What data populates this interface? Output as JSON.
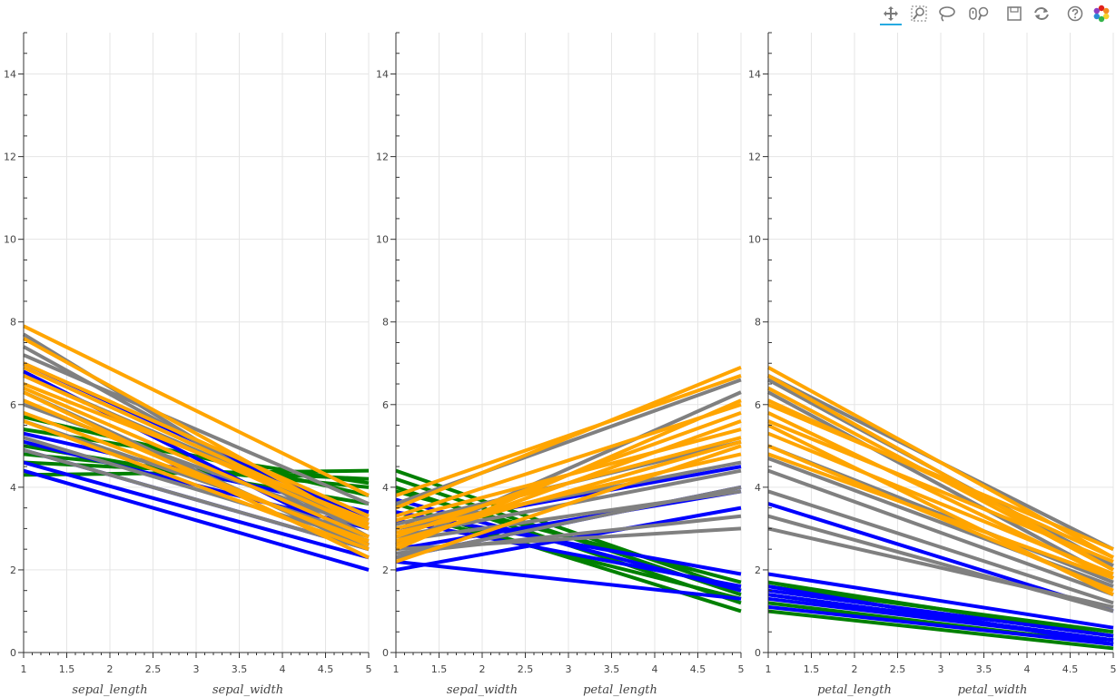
{
  "toolbar": {
    "tools": [
      {
        "name": "pan-tool",
        "icon": "pan-icon",
        "active": true
      },
      {
        "name": "box-zoom-tool",
        "icon": "box-zoom-icon",
        "active": false
      },
      {
        "name": "lasso-select-tool",
        "icon": "lasso-icon",
        "active": false
      },
      {
        "name": "wheel-zoom-tool",
        "icon": "wheel-zoom-icon",
        "active": false
      },
      {
        "name": "save-tool",
        "icon": "save-icon",
        "active": false
      },
      {
        "name": "reset-tool",
        "icon": "reset-icon",
        "active": false
      },
      {
        "name": "help-tool",
        "icon": "help-icon",
        "active": false
      },
      {
        "name": "bokeh-logo",
        "icon": "bokeh-logo-icon",
        "active": false
      }
    ]
  },
  "chart_data": [
    {
      "type": "line",
      "xlim": [
        1,
        5
      ],
      "ylim": [
        0,
        15
      ],
      "x_ticks": [
        "1",
        "1.5",
        "2",
        "2.5",
        "3",
        "3.5",
        "4",
        "4.5",
        "5"
      ],
      "y_ticks": [
        "0",
        "2",
        "4",
        "6",
        "8",
        "10",
        "12",
        "14"
      ],
      "x_category_labels": [
        "sepal_length",
        "sepal_width"
      ],
      "grid": true,
      "series": [
        {
          "color": "#008000",
          "values": [
            [
              1,
              4.3,
              4.4
            ],
            [
              1,
              4.6,
              4.2
            ],
            [
              1,
              4.8,
              4.0
            ],
            [
              1,
              5.0,
              3.6
            ],
            [
              1,
              5.4,
              4.1
            ],
            [
              1,
              5.7,
              3.8
            ]
          ]
        },
        {
          "color": "#0000ff",
          "values": [
            [
              1,
              4.4,
              2.0
            ],
            [
              1,
              4.6,
              2.3
            ],
            [
              1,
              4.9,
              2.5
            ],
            [
              1,
              5.1,
              3.0
            ],
            [
              1,
              5.3,
              3.4
            ],
            [
              1,
              7.0,
              3.2
            ],
            [
              1,
              6.8,
              2.6
            ]
          ]
        },
        {
          "color": "#808080",
          "values": [
            [
              1,
              4.9,
              2.5
            ],
            [
              1,
              5.2,
              2.7
            ],
            [
              1,
              5.6,
              2.8
            ],
            [
              1,
              6.0,
              3.0
            ],
            [
              1,
              6.3,
              2.5
            ],
            [
              1,
              6.7,
              3.1
            ],
            [
              1,
              7.2,
              3.6
            ],
            [
              1,
              7.7,
              2.6
            ],
            [
              1,
              7.4,
              2.8
            ]
          ]
        },
        {
          "color": "#ffa500",
          "values": [
            [
              1,
              5.8,
              2.7
            ],
            [
              1,
              6.1,
              2.6
            ],
            [
              1,
              6.4,
              2.8
            ],
            [
              1,
              6.7,
              3.0
            ],
            [
              1,
              7.0,
              3.3
            ],
            [
              1,
              7.6,
              3.0
            ],
            [
              1,
              7.9,
              3.8
            ],
            [
              1,
              6.9,
              3.1
            ],
            [
              1,
              6.3,
              2.3
            ],
            [
              1,
              5.6,
              2.5
            ],
            [
              1,
              6.5,
              3.2
            ]
          ]
        }
      ]
    },
    {
      "type": "line",
      "xlim": [
        1,
        5
      ],
      "ylim": [
        0,
        15
      ],
      "x_ticks": [
        "1",
        "1.5",
        "2",
        "2.5",
        "3",
        "3.5",
        "4",
        "4.5",
        "5"
      ],
      "y_ticks": [
        "0",
        "2",
        "4",
        "6",
        "8",
        "10",
        "12",
        "14"
      ],
      "x_category_labels": [
        "sepal_width",
        "petal_length"
      ],
      "grid": true,
      "series": [
        {
          "color": "#008000",
          "values": [
            [
              1,
              4.4,
              1.5
            ],
            [
              1,
              4.2,
              1.4
            ],
            [
              1,
              4.0,
              1.2
            ],
            [
              1,
              3.6,
              1.0
            ],
            [
              1,
              3.9,
              1.7
            ],
            [
              1,
              3.4,
              1.3
            ]
          ]
        },
        {
          "color": "#0000ff",
          "values": [
            [
              1,
              2.0,
              3.5
            ],
            [
              1,
              2.3,
              4.0
            ],
            [
              1,
              2.5,
              3.9
            ],
            [
              1,
              3.0,
              4.5
            ],
            [
              1,
              3.4,
              1.9
            ],
            [
              1,
              3.2,
              1.6
            ],
            [
              1,
              3.7,
              1.5
            ],
            [
              1,
              2.2,
              1.3
            ]
          ]
        },
        {
          "color": "#808080",
          "values": [
            [
              1,
              2.5,
              3.0
            ],
            [
              1,
              2.7,
              3.9
            ],
            [
              1,
              2.8,
              4.4
            ],
            [
              1,
              3.0,
              4.6
            ],
            [
              1,
              2.4,
              3.3
            ],
            [
              1,
              3.1,
              5.1
            ],
            [
              1,
              3.6,
              6.6
            ],
            [
              1,
              2.6,
              6.3
            ],
            [
              1,
              2.3,
              4.0
            ]
          ]
        },
        {
          "color": "#ffa500",
          "values": [
            [
              1,
              2.7,
              5.1
            ],
            [
              1,
              2.6,
              5.6
            ],
            [
              1,
              2.8,
              5.8
            ],
            [
              1,
              3.0,
              5.2
            ],
            [
              1,
              3.3,
              6.0
            ],
            [
              1,
              3.8,
              6.7
            ],
            [
              1,
              3.5,
              6.9
            ],
            [
              1,
              2.2,
              5.0
            ],
            [
              1,
              2.5,
              6.1
            ],
            [
              1,
              3.2,
              5.4
            ],
            [
              1,
              2.9,
              4.8
            ]
          ]
        }
      ]
    },
    {
      "type": "line",
      "xlim": [
        1,
        5
      ],
      "ylim": [
        0,
        15
      ],
      "x_ticks": [
        "1",
        "1.5",
        "2",
        "2.5",
        "3",
        "3.5",
        "4",
        "4.5",
        "5"
      ],
      "y_ticks": [
        "0",
        "2",
        "4",
        "6",
        "8",
        "10",
        "12",
        "14"
      ],
      "x_category_labels": [
        "petal_length",
        "petal_width"
      ],
      "grid": true,
      "series": [
        {
          "color": "#008000",
          "values": [
            [
              1,
              1.0,
              0.1
            ],
            [
              1,
              1.2,
              0.2
            ],
            [
              1,
              1.4,
              0.3
            ],
            [
              1,
              1.6,
              0.5
            ],
            [
              1,
              1.7,
              0.4
            ]
          ]
        },
        {
          "color": "#0000ff",
          "values": [
            [
              1,
              1.1,
              0.2
            ],
            [
              1,
              1.3,
              0.3
            ],
            [
              1,
              1.5,
              0.4
            ],
            [
              1,
              1.9,
              0.6
            ],
            [
              1,
              1.6,
              0.2
            ],
            [
              1,
              3.6,
              1.0
            ],
            [
              1,
              1.4,
              0.3
            ]
          ]
        },
        {
          "color": "#808080",
          "values": [
            [
              1,
              3.0,
              1.1
            ],
            [
              1,
              3.3,
              1.0
            ],
            [
              1,
              3.9,
              1.2
            ],
            [
              1,
              4.4,
              1.4
            ],
            [
              1,
              4.7,
              1.6
            ],
            [
              1,
              5.0,
              1.7
            ],
            [
              1,
              6.3,
              1.8
            ],
            [
              1,
              6.6,
              2.1
            ],
            [
              1,
              6.7,
              2.5
            ]
          ]
        },
        {
          "color": "#ffa500",
          "values": [
            [
              1,
              5.0,
              1.5
            ],
            [
              1,
              5.3,
              1.9
            ],
            [
              1,
              5.6,
              2.2
            ],
            [
              1,
              5.8,
              1.8
            ],
            [
              1,
              6.1,
              2.3
            ],
            [
              1,
              6.4,
              2.0
            ],
            [
              1,
              6.9,
              2.3
            ],
            [
              1,
              6.7,
              2.0
            ],
            [
              1,
              5.5,
              1.4
            ],
            [
              1,
              4.8,
              1.8
            ],
            [
              1,
              6.0,
              2.5
            ]
          ]
        }
      ]
    }
  ]
}
